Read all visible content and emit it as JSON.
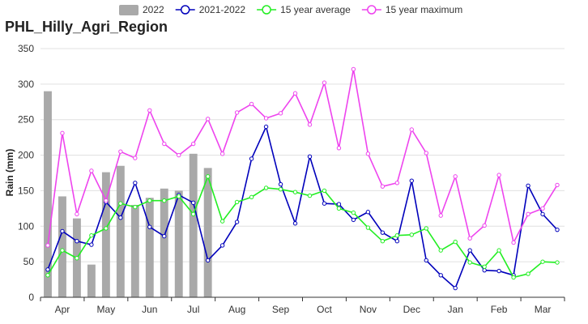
{
  "chart_data": {
    "type": "line",
    "title": "PHL_Hilly_Agri_Region",
    "xlabel": "",
    "ylabel": "Rain (mm)",
    "ylim": [
      0,
      350
    ],
    "yticks": [
      0,
      50,
      100,
      150,
      200,
      250,
      300,
      350
    ],
    "grid": true,
    "legend_position": "top",
    "x_count": 36,
    "month_labels": [
      {
        "label": "Apr",
        "index": 1
      },
      {
        "label": "May",
        "index": 4
      },
      {
        "label": "Jun",
        "index": 7
      },
      {
        "label": "Jul",
        "index": 10
      },
      {
        "label": "Aug",
        "index": 13
      },
      {
        "label": "Sep",
        "index": 16
      },
      {
        "label": "Oct",
        "index": 19
      },
      {
        "label": "Nov",
        "index": 22
      },
      {
        "label": "Dec",
        "index": 25
      },
      {
        "label": "Jan",
        "index": 28
      },
      {
        "label": "Feb",
        "index": 31
      },
      {
        "label": "Mar",
        "index": 34
      }
    ],
    "series": [
      {
        "name": "2022",
        "kind": "bar",
        "color": "#a9a9a9",
        "values": [
          290,
          142,
          111,
          46,
          176,
          185,
          130,
          140,
          153,
          150,
          202,
          182
        ]
      },
      {
        "name": "2021-2022",
        "kind": "line",
        "color": "#0000bb",
        "values": [
          39,
          93,
          79,
          74,
          134,
          112,
          161,
          99,
          86,
          144,
          133,
          52,
          73,
          106,
          195,
          240,
          159,
          104,
          198,
          132,
          131,
          109,
          120,
          91,
          79,
          164,
          52,
          31,
          13,
          66,
          38,
          37,
          31,
          157,
          117,
          95
        ]
      },
      {
        "name": "15 year average",
        "kind": "line",
        "color": "#22ee22",
        "values": [
          31,
          66,
          55,
          87,
          97,
          132,
          127,
          136,
          136,
          142,
          117,
          170,
          107,
          134,
          141,
          154,
          152,
          148,
          143,
          150,
          125,
          119,
          98,
          79,
          87,
          88,
          97,
          66,
          78,
          49,
          43,
          66,
          28,
          33,
          50,
          49
        ]
      },
      {
        "name": "15 year maximum",
        "kind": "line",
        "color": "#ee44ee",
        "values": [
          73,
          231,
          117,
          178,
          136,
          205,
          196,
          263,
          216,
          200,
          216,
          251,
          202,
          260,
          272,
          252,
          259,
          287,
          243,
          302,
          210,
          321,
          202,
          156,
          161,
          236,
          203,
          115,
          170,
          83,
          101,
          172,
          77,
          117,
          125,
          158
        ]
      }
    ]
  }
}
